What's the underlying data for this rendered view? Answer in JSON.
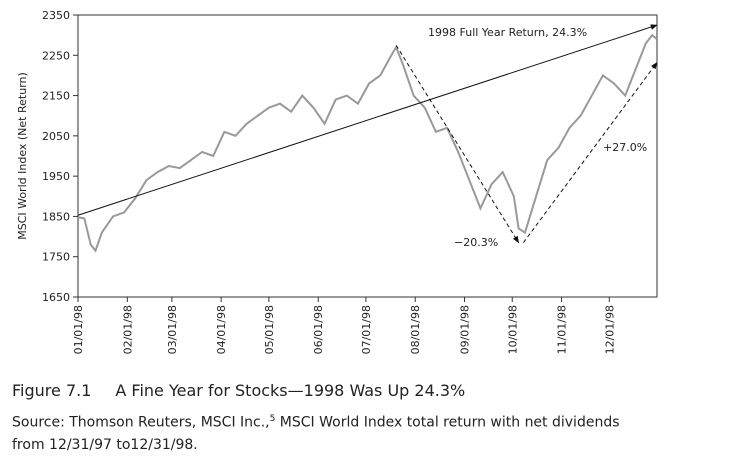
{
  "chart_data": {
    "type": "line",
    "y_label": "MSCI World Index (Net Return)",
    "ylim": [
      1650,
      2350
    ],
    "yticks": [
      1650,
      1750,
      1850,
      1950,
      2050,
      2150,
      2250,
      2350
    ],
    "xlim": [
      "1998-01-01",
      "1998-12-31"
    ],
    "xticks": [
      {
        "value": "1998-01-01",
        "label": "01/01/98"
      },
      {
        "value": "1998-02-01",
        "label": "02/01/98"
      },
      {
        "value": "1998-03-01",
        "label": "03/01/98"
      },
      {
        "value": "1998-04-01",
        "label": "04/01/98"
      },
      {
        "value": "1998-05-01",
        "label": "05/01/98"
      },
      {
        "value": "1998-06-01",
        "label": "06/01/98"
      },
      {
        "value": "1998-07-01",
        "label": "07/01/98"
      },
      {
        "value": "1998-08-01",
        "label": "08/01/98"
      },
      {
        "value": "1998-09-01",
        "label": "09/01/98"
      },
      {
        "value": "1998-10-01",
        "label": "10/01/98"
      },
      {
        "value": "1998-11-01",
        "label": "11/01/98"
      },
      {
        "value": "1998-12-01",
        "label": "12/01/98"
      }
    ],
    "x": [
      "1998-01-01",
      "1998-01-05",
      "1998-01-09",
      "1998-01-12",
      "1998-01-16",
      "1998-01-23",
      "1998-01-30",
      "1998-02-06",
      "1998-02-13",
      "1998-02-20",
      "1998-02-27",
      "1998-03-06",
      "1998-03-13",
      "1998-03-20",
      "1998-03-27",
      "1998-04-03",
      "1998-04-10",
      "1998-04-17",
      "1998-04-24",
      "1998-05-01",
      "1998-05-08",
      "1998-05-15",
      "1998-05-22",
      "1998-05-29",
      "1998-06-05",
      "1998-06-12",
      "1998-06-19",
      "1998-06-26",
      "1998-07-03",
      "1998-07-10",
      "1998-07-17",
      "1998-07-20",
      "1998-07-24",
      "1998-07-31",
      "1998-08-07",
      "1998-08-14",
      "1998-08-21",
      "1998-08-28",
      "1998-09-04",
      "1998-09-11",
      "1998-09-18",
      "1998-09-25",
      "1998-10-02",
      "1998-10-05",
      "1998-10-09",
      "1998-10-16",
      "1998-10-23",
      "1998-10-30",
      "1998-11-06",
      "1998-11-13",
      "1998-11-20",
      "1998-11-27",
      "1998-12-04",
      "1998-12-11",
      "1998-12-18",
      "1998-12-24",
      "1998-12-28",
      "1998-12-31"
    ],
    "series": [
      {
        "name": "MSCI World Index",
        "color": "#999999",
        "values": [
          1848,
          1845,
          1780,
          1765,
          1810,
          1850,
          1860,
          1895,
          1940,
          1960,
          1975,
          1970,
          1990,
          2010,
          2000,
          2060,
          2050,
          2080,
          2100,
          2120,
          2130,
          2110,
          2150,
          2120,
          2080,
          2140,
          2150,
          2130,
          2180,
          2200,
          2250,
          2270,
          2230,
          2150,
          2120,
          2060,
          2070,
          2010,
          1940,
          1870,
          1930,
          1960,
          1900,
          1820,
          1810,
          1900,
          1990,
          2020,
          2070,
          2100,
          2150,
          2200,
          2180,
          2150,
          2220,
          2280,
          2300,
          2290
        ]
      }
    ],
    "annotations": [
      {
        "text": "1998 Full Year Return, 24.3%",
        "from": [
          "1998-01-01",
          1853
        ],
        "to": [
          "1998-12-31",
          2325
        ],
        "style": "solid"
      },
      {
        "text": "−20.3%",
        "from": [
          "1998-07-20",
          2275
        ],
        "to": [
          "1998-10-05",
          1785
        ],
        "style": "dashed"
      },
      {
        "text": "+27.0%",
        "from": [
          "1998-10-08",
          1785
        ],
        "to": [
          "1998-12-31",
          2232
        ],
        "style": "dashed"
      }
    ]
  },
  "caption": {
    "figure": "Figure 7.1",
    "title": "A Fine Year for Stocks—1998 Was Up 24.3%",
    "source": "Source: Thomson Reuters, MSCI Inc.,",
    "note": "5",
    "source_rest": " MSCI World Index total return with net dividends from 12/31/97 to12/31/98."
  }
}
